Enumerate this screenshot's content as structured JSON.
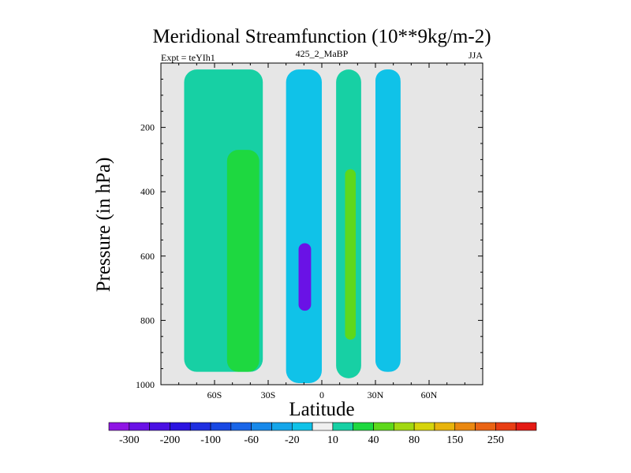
{
  "chart_data": {
    "type": "heatmap",
    "title": "Meridional Streamfunction (10**9kg/m-2)",
    "left_label": "Expt = teYIh1",
    "center_label": "425_2_MaBP",
    "right_label": "JJA",
    "xlabel": "Latitude",
    "ylabel": "Pressure (in hPa)",
    "xlim": [
      -90,
      90
    ],
    "ylim": [
      1000,
      0
    ],
    "x_ticks": [
      {
        "value": -60,
        "label": "60S"
      },
      {
        "value": -30,
        "label": "30S"
      },
      {
        "value": 0,
        "label": "0"
      },
      {
        "value": 30,
        "label": "30N"
      },
      {
        "value": 60,
        "label": "60N"
      }
    ],
    "y_ticks": [
      {
        "value": 200,
        "label": "200"
      },
      {
        "value": 400,
        "label": "400"
      },
      {
        "value": 600,
        "label": "600"
      },
      {
        "value": 800,
        "label": "800"
      },
      {
        "value": 1000,
        "label": "1000"
      }
    ],
    "background_color": "#e6e6e6",
    "colorbar": {
      "colors": [
        "#8f16e4",
        "#6a12e6",
        "#4a10e3",
        "#2b14e0",
        "#1f2fe0",
        "#1848e3",
        "#1a66e8",
        "#1889ea",
        "#16a6ea",
        "#10c2e8",
        "#f0f0f0",
        "#17d0a4",
        "#1ed840",
        "#5ed81c",
        "#a2d812",
        "#d6d40c",
        "#e8b40c",
        "#ea8810",
        "#ea6414",
        "#e83e14",
        "#e41a14"
      ],
      "labels": [
        "-300",
        "-200",
        "-100",
        "-60",
        "-20",
        "10",
        "40",
        "80",
        "150",
        "250"
      ],
      "label_boundaries": [
        1,
        3,
        5,
        7,
        9,
        11,
        13,
        15,
        17,
        19
      ]
    },
    "contour_fields": [
      {
        "name": "southern-hemisphere-positive-cell",
        "color": "#17d0a4",
        "lat_range": [
          -77,
          -33
        ],
        "pressure_range": [
          20,
          960
        ],
        "peak_color": "#1ed840",
        "peak_lat_range": [
          -53,
          -35
        ],
        "peak_pressure_range": [
          270,
          960
        ]
      },
      {
        "name": "tropical-negative-cell",
        "color": "#10c2e8",
        "lat_range": [
          -20,
          0
        ],
        "pressure_range": [
          20,
          995
        ],
        "peak_color": "#6a12e6",
        "peak_lat_range": [
          -13,
          -6
        ],
        "peak_pressure_range": [
          560,
          770
        ]
      },
      {
        "name": "northern-tropical-positive-cell",
        "color": "#17d0a4",
        "lat_range": [
          8,
          22
        ],
        "pressure_range": [
          20,
          980
        ],
        "peak_color": "#5ed81c",
        "peak_lat_range": [
          13,
          19
        ],
        "peak_pressure_range": [
          330,
          860
        ]
      },
      {
        "name": "northern-midlatitude-negative-cell",
        "color": "#10c2e8",
        "lat_range": [
          30,
          44
        ],
        "pressure_range": [
          20,
          960
        ],
        "peak_color": "#10c2e8",
        "peak_lat_range": [
          30,
          44
        ],
        "peak_pressure_range": [
          20,
          960
        ]
      }
    ]
  }
}
